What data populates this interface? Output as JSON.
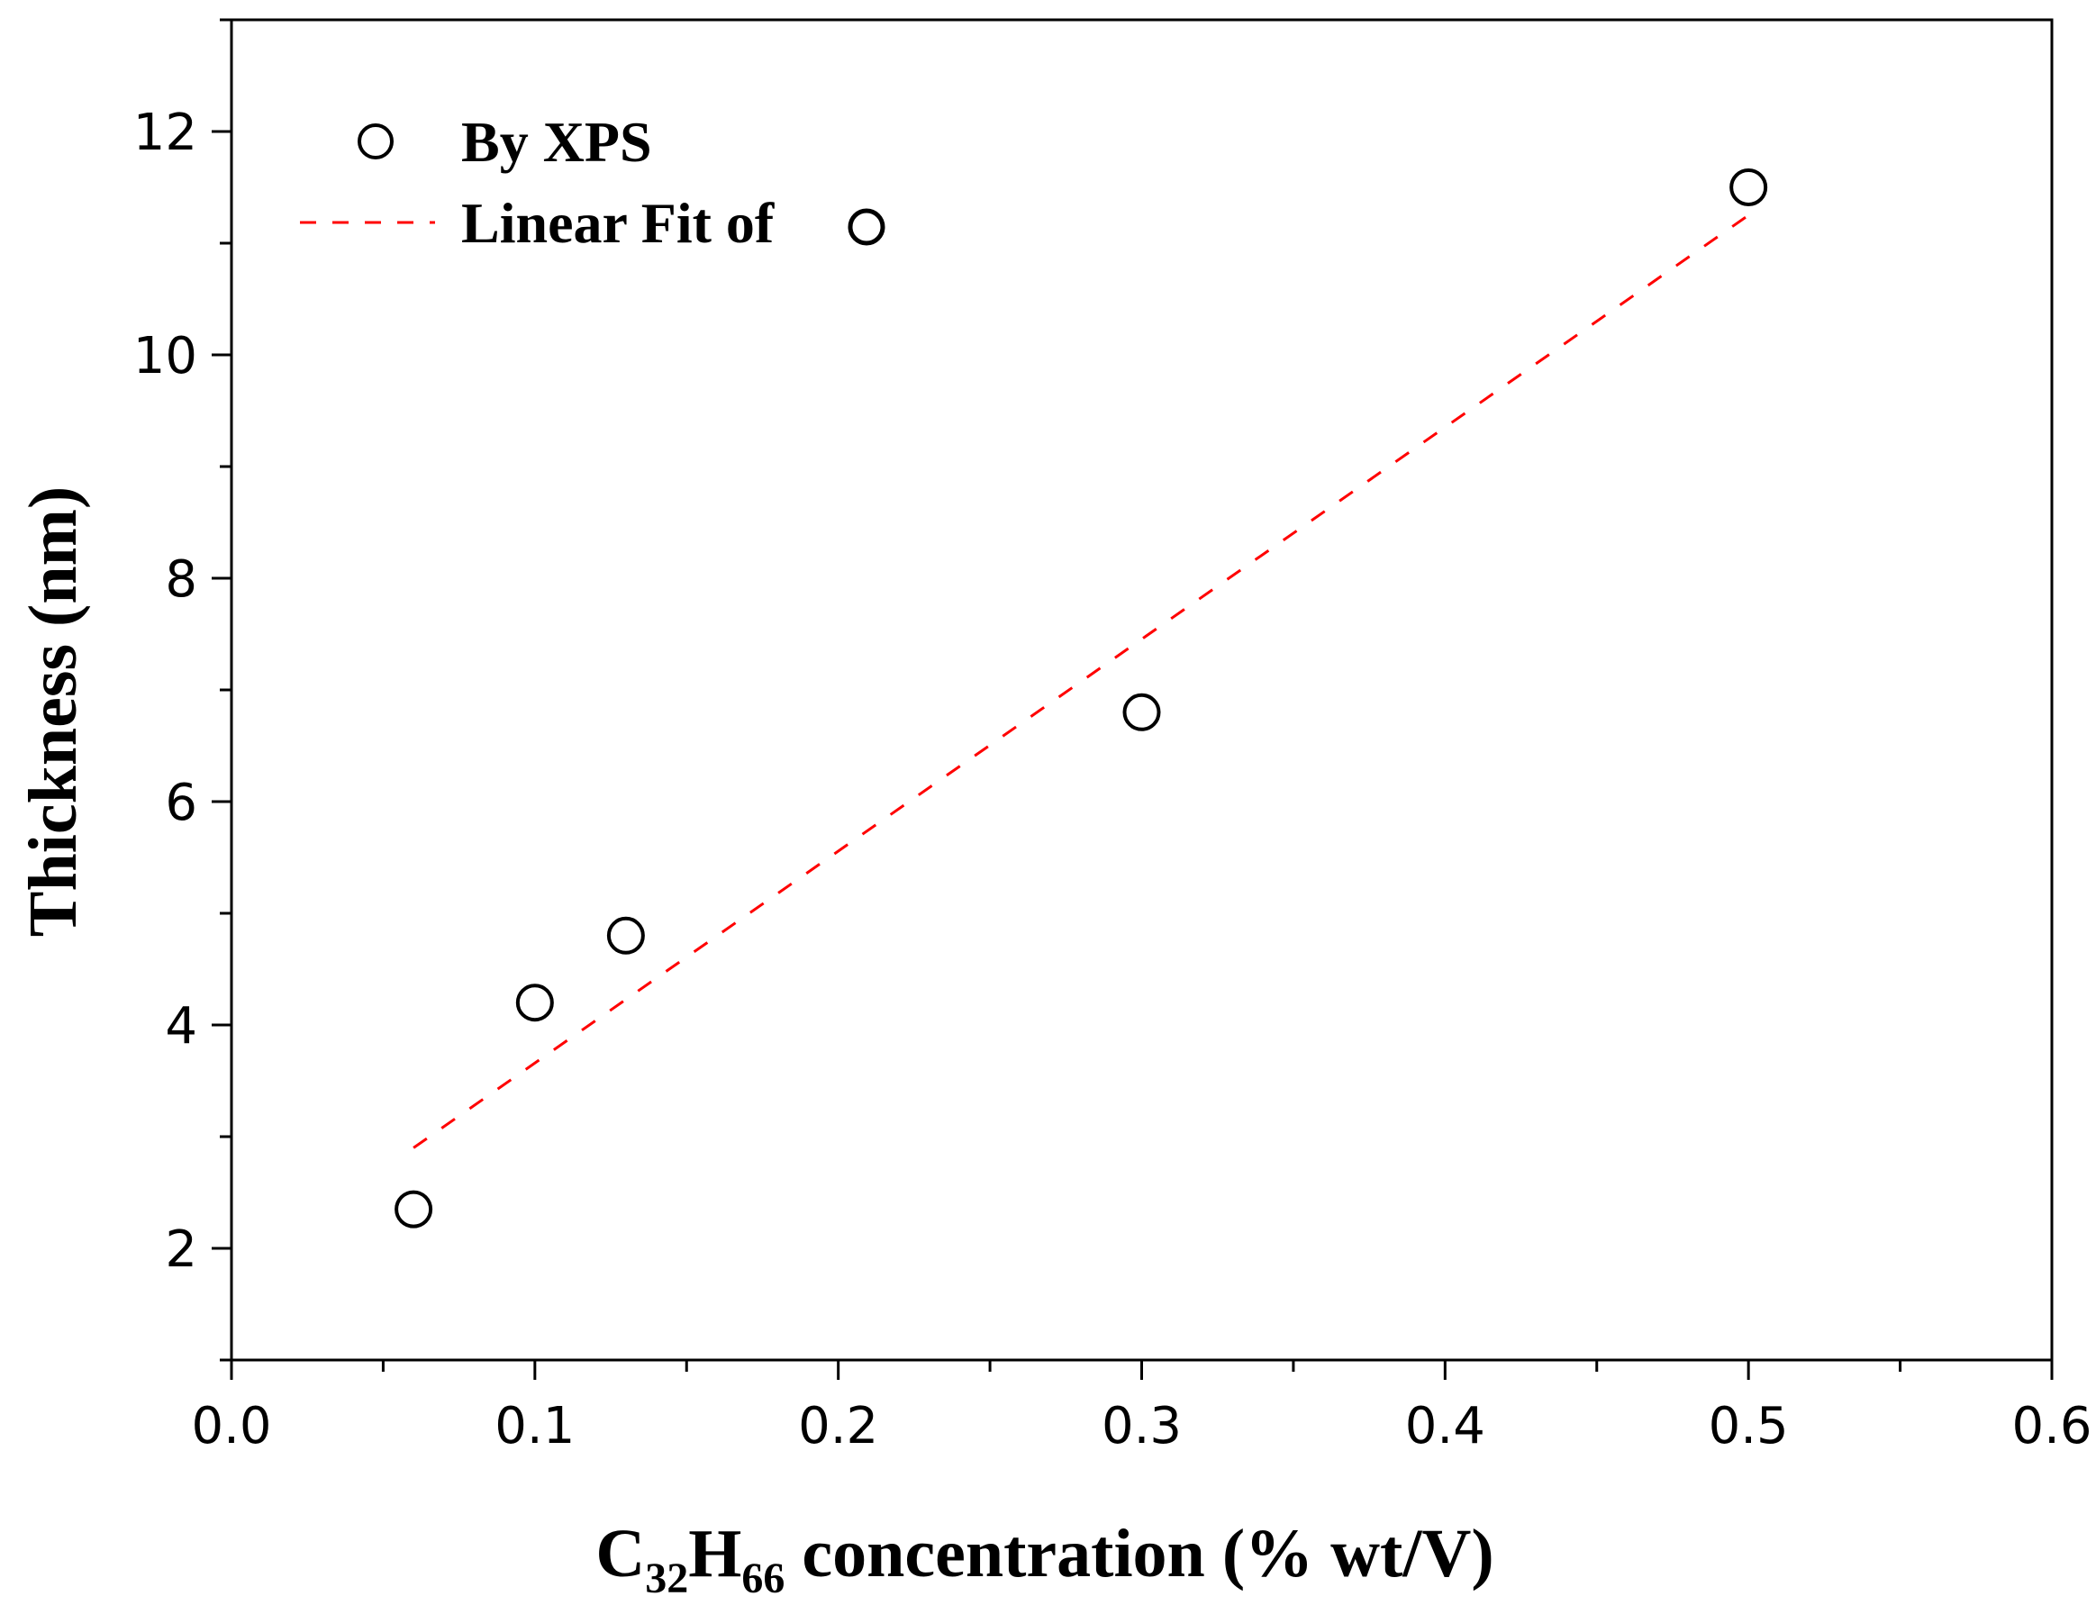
{
  "chart_data": {
    "type": "scatter",
    "title": "",
    "xlabel": {
      "prefix": "C",
      "sub1": "32",
      "mid": "H",
      "sub2": "66",
      "suffix": " concentration (% wt/V)"
    },
    "ylabel": "Thickness (nm)",
    "xlim": [
      0.0,
      0.6
    ],
    "ylim": [
      1.0,
      13.0
    ],
    "xticks": [
      0.0,
      0.1,
      0.2,
      0.3,
      0.4,
      0.5,
      0.6
    ],
    "xtick_labels": [
      "0.0",
      "0.1",
      "0.2",
      "0.3",
      "0.4",
      "0.5",
      "0.6"
    ],
    "yticks": [
      2,
      4,
      6,
      8,
      10,
      12
    ],
    "ytick_labels": [
      "2",
      "4",
      "6",
      "8",
      "10",
      "12"
    ],
    "grid": false,
    "series": [
      {
        "name": "By XPS",
        "kind": "scatter",
        "marker": "open-circle",
        "color": "#000000",
        "x": [
          0.06,
          0.1,
          0.13,
          0.3,
          0.5
        ],
        "y": [
          2.35,
          4.2,
          4.8,
          6.8,
          11.5
        ]
      },
      {
        "name": "Linear Fit of",
        "kind": "line",
        "style": "dashed",
        "color": "#ff0000",
        "x": [
          0.06,
          0.5
        ],
        "y": [
          2.9,
          11.25
        ]
      }
    ],
    "legend": {
      "position": "top-left",
      "entries": [
        "By XPS",
        "Linear Fit of"
      ]
    }
  }
}
